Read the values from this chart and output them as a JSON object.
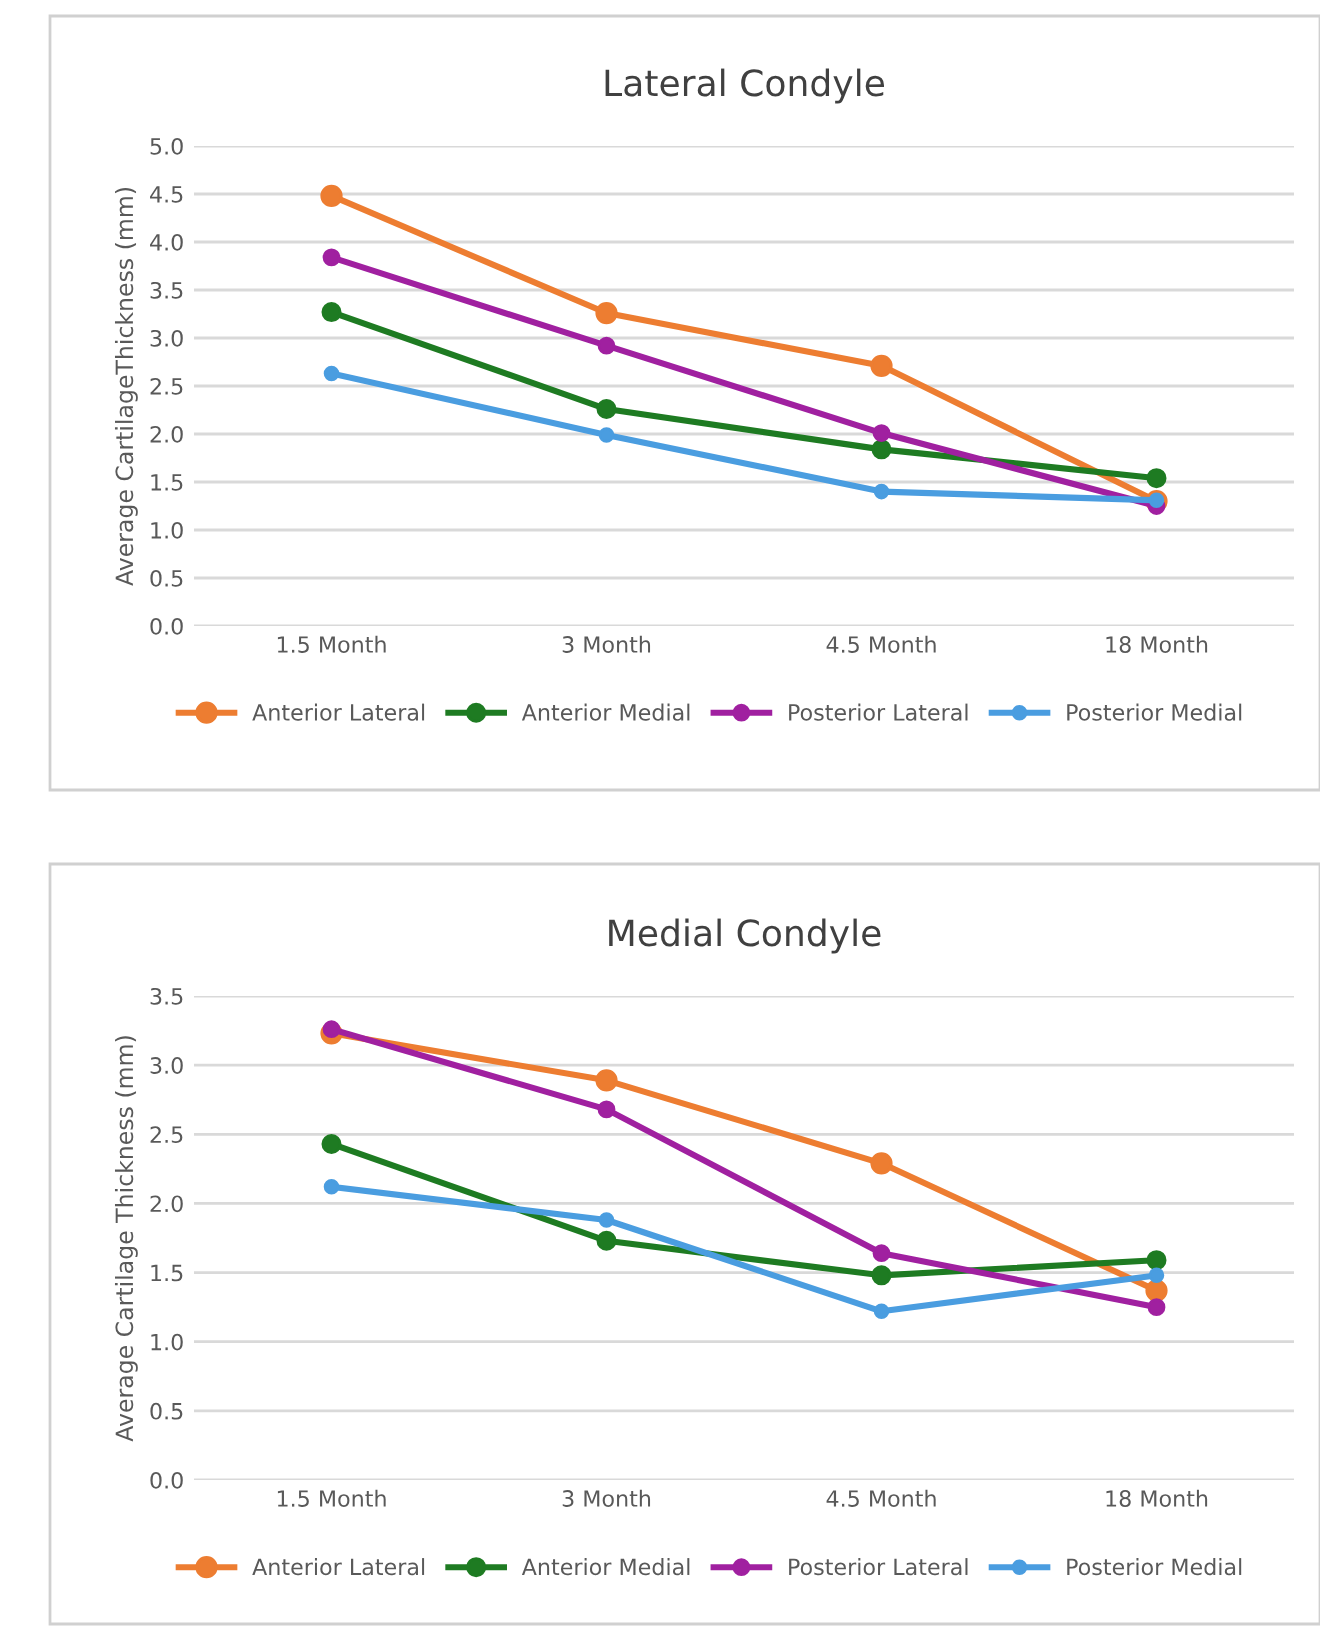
{
  "chart_data": [
    {
      "type": "line",
      "title": "Lateral Condyle",
      "ylabel": "Average CartilageThickness (mm)",
      "categories": [
        "1.5 Month",
        "3 Month",
        "4.5 Month",
        "18 Month"
      ],
      "ylim": [
        0,
        5
      ],
      "yticks": [
        {
          "value": 0,
          "label": "0.0"
        },
        {
          "value": 0.5,
          "label": "0.5"
        },
        {
          "value": 1,
          "label": "1.0"
        },
        {
          "value": 1.5,
          "label": "1.5"
        },
        {
          "value": 2,
          "label": "2.0"
        },
        {
          "value": 2.5,
          "label": "2.5"
        },
        {
          "value": 3,
          "label": "3.0"
        },
        {
          "value": 3.5,
          "label": "3.5"
        },
        {
          "value": 4,
          "label": "4.0"
        },
        {
          "value": 4.5,
          "label": "4.5"
        },
        {
          "value": 5,
          "label": "5.0"
        }
      ],
      "grid": "y",
      "legend": "bottom",
      "marker": "circle",
      "line_style": "solid",
      "series": [
        {
          "name": "Anterior Lateral",
          "color": "#ed7d31",
          "values": [
            4.48,
            3.26,
            2.71,
            1.3
          ]
        },
        {
          "name": "Anterior Medial",
          "color": "#1e7b22",
          "values": [
            3.27,
            2.26,
            1.84,
            1.54
          ]
        },
        {
          "name": "Posterior Lateral",
          "color": "#a020a0",
          "values": [
            3.84,
            2.92,
            2.01,
            1.25
          ]
        },
        {
          "name": "Posterior Medial",
          "color": "#4a9de0",
          "values": [
            2.63,
            1.99,
            1.4,
            1.31
          ]
        }
      ]
    },
    {
      "type": "line",
      "title": "Medial Condyle",
      "ylabel": "Average Cartilage Thickness (mm)",
      "categories": [
        "1.5 Month",
        "3 Month",
        "4.5 Month",
        "18 Month"
      ],
      "ylim": [
        0,
        3.5
      ],
      "yticks": [
        {
          "value": 0,
          "label": "0.0"
        },
        {
          "value": 0.5,
          "label": "0.5"
        },
        {
          "value": 1,
          "label": "1.0"
        },
        {
          "value": 1.5,
          "label": "1.5"
        },
        {
          "value": 2,
          "label": "2.0"
        },
        {
          "value": 2.5,
          "label": "2.5"
        },
        {
          "value": 3,
          "label": "3.0"
        },
        {
          "value": 3.5,
          "label": "3.5"
        }
      ],
      "grid": "y",
      "legend": "bottom",
      "marker": "circle",
      "line_style": "solid",
      "series": [
        {
          "name": "Anterior Lateral",
          "color": "#ed7d31",
          "values": [
            3.23,
            2.89,
            2.29,
            1.37
          ]
        },
        {
          "name": "Anterior Medial",
          "color": "#1e7b22",
          "values": [
            2.43,
            1.73,
            1.48,
            1.59
          ]
        },
        {
          "name": "Posterior Lateral",
          "color": "#a020a0",
          "values": [
            3.26,
            2.68,
            1.64,
            1.25
          ]
        },
        {
          "name": "Posterior Medial",
          "color": "#4a9de0",
          "values": [
            2.12,
            1.88,
            1.22,
            1.48
          ]
        }
      ]
    }
  ]
}
